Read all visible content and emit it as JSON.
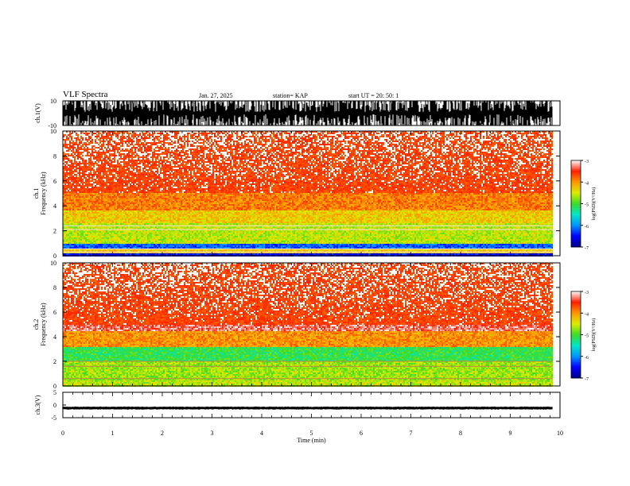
{
  "header": {
    "title": "VLF Spectra",
    "date": "Jan. 27, 2025",
    "station": "station= KAP",
    "start": "start  UT  =   20: 50: 1"
  },
  "chart_data": [
    {
      "type": "line",
      "name": "ch1-waveform",
      "ylabel": "ch.1(V)",
      "ylim": [
        -10,
        10
      ],
      "yticks": [
        "10",
        "-10"
      ],
      "xlim": [
        0,
        10
      ],
      "description_values": {
        "typical_range": [
          -10,
          10
        ]
      }
    },
    {
      "type": "heatmap",
      "name": "ch1-spectrogram",
      "ylabel_top": "ch.1",
      "ylabel": "Frequency  (kHz)",
      "ylim": [
        0,
        10
      ],
      "yticks": [
        "0",
        "2",
        "4",
        "6",
        "8",
        "10"
      ],
      "xlim": [
        0,
        10
      ],
      "data_end_time": 9.85,
      "band_profile": [
        {
          "f": [
            0.0,
            0.2
          ],
          "log_psd": -6.5
        },
        {
          "f": [
            0.2,
            0.6
          ],
          "log_psd": -4.3
        },
        {
          "f": [
            0.6,
            1.0
          ],
          "log_psd": -6.2
        },
        {
          "f": [
            1.0,
            2.6
          ],
          "log_psd": -4.6
        },
        {
          "f": [
            2.6,
            3.6
          ],
          "log_psd": -4.3
        },
        {
          "f": [
            3.6,
            5.5
          ],
          "log_psd": -3.9
        },
        {
          "f": [
            5.5,
            10.0
          ],
          "log_psd": -3.3
        }
      ],
      "colorbar": {
        "label": "log(PSD)(V²/Hz)",
        "range": [
          -7,
          -3
        ],
        "ticks": [
          "-3",
          "-4",
          "-5",
          "-6",
          "-7"
        ]
      }
    },
    {
      "type": "heatmap",
      "name": "ch2-spectrogram",
      "ylabel_top": "ch.2",
      "ylabel": "Frequency  (kHz)",
      "ylim": [
        0,
        10
      ],
      "yticks": [
        "0",
        "2",
        "4",
        "6",
        "8",
        "10"
      ],
      "xlim": [
        0,
        10
      ],
      "data_end_time": 9.85,
      "band_profile": [
        {
          "f": [
            0.0,
            0.5
          ],
          "log_psd": -4.6
        },
        {
          "f": [
            0.5,
            2.0
          ],
          "log_psd": -4.7
        },
        {
          "f": [
            2.0,
            3.1
          ],
          "log_psd": -5.1
        },
        {
          "f": [
            3.1,
            4.5
          ],
          "log_psd": -4.0
        },
        {
          "f": [
            4.5,
            10.0
          ],
          "log_psd": -3.3
        }
      ],
      "colorbar": {
        "label": "log(PSD)(V²/Hz)",
        "range": [
          -7,
          -3
        ],
        "ticks": [
          "-3",
          "-4",
          "-5",
          "-6",
          "-7"
        ]
      }
    },
    {
      "type": "line",
      "name": "ch3-waveform",
      "ylabel": "ch.3(V)",
      "ylim": [
        -5,
        5
      ],
      "yticks": [
        "5",
        "0",
        "-5"
      ],
      "xlim": [
        0,
        10
      ],
      "description_values": {
        "baseline": -1.2,
        "amplitude": 0.4
      }
    }
  ],
  "xaxis": {
    "label": "Time  (min)",
    "ticks": [
      "0",
      "1",
      "2",
      "3",
      "4",
      "5",
      "6",
      "7",
      "8",
      "9",
      "10"
    ],
    "range": [
      0,
      10
    ]
  }
}
